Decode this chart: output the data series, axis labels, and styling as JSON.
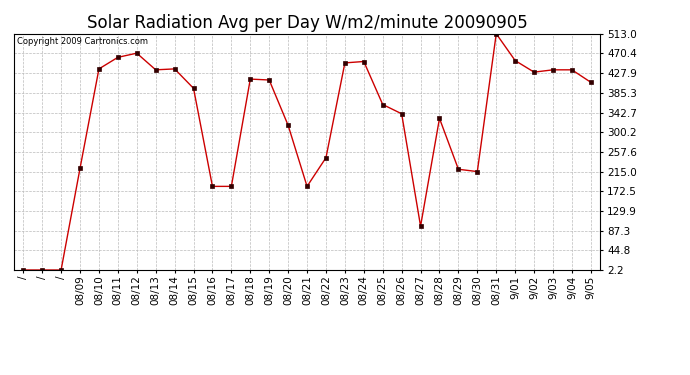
{
  "title": "Solar Radiation Avg per Day W/m2/minute 20090905",
  "copyright": "Copyright 2009 Cartronics.com",
  "x_labels": [
    "/",
    "/",
    "/",
    "08/09",
    "08/10",
    "08/11",
    "08/12",
    "08/13",
    "08/14",
    "08/15",
    "08/16",
    "08/17",
    "08/18",
    "08/19",
    "08/20",
    "08/21",
    "08/22",
    "08/23",
    "08/24",
    "08/25",
    "08/26",
    "08/27",
    "08/28",
    "08/29",
    "08/30",
    "08/31",
    "9/01",
    "9/02",
    "9/03",
    "9/04",
    "9/05"
  ],
  "y_values": [
    2.2,
    2.2,
    2.2,
    222.0,
    437.0,
    462.0,
    471.0,
    435.0,
    437.0,
    395.0,
    183.0,
    183.0,
    415.0,
    413.0,
    315.0,
    183.0,
    245.0,
    450.0,
    453.0,
    360.0,
    340.0,
    97.0,
    330.0,
    220.0,
    215.0,
    513.0,
    455.0,
    430.0,
    435.0,
    435.0,
    408.0
  ],
  "line_color": "#cc0000",
  "marker_color": "#330000",
  "bg_color": "#ffffff",
  "grid_color": "#bbbbbb",
  "yticks": [
    2.2,
    44.8,
    87.3,
    129.9,
    172.5,
    215.0,
    257.6,
    300.2,
    342.7,
    385.3,
    427.9,
    470.4,
    513.0
  ],
  "ylim": [
    2.2,
    513.0
  ],
  "title_fontsize": 12,
  "tick_fontsize": 7.5,
  "copyright_fontsize": 6
}
